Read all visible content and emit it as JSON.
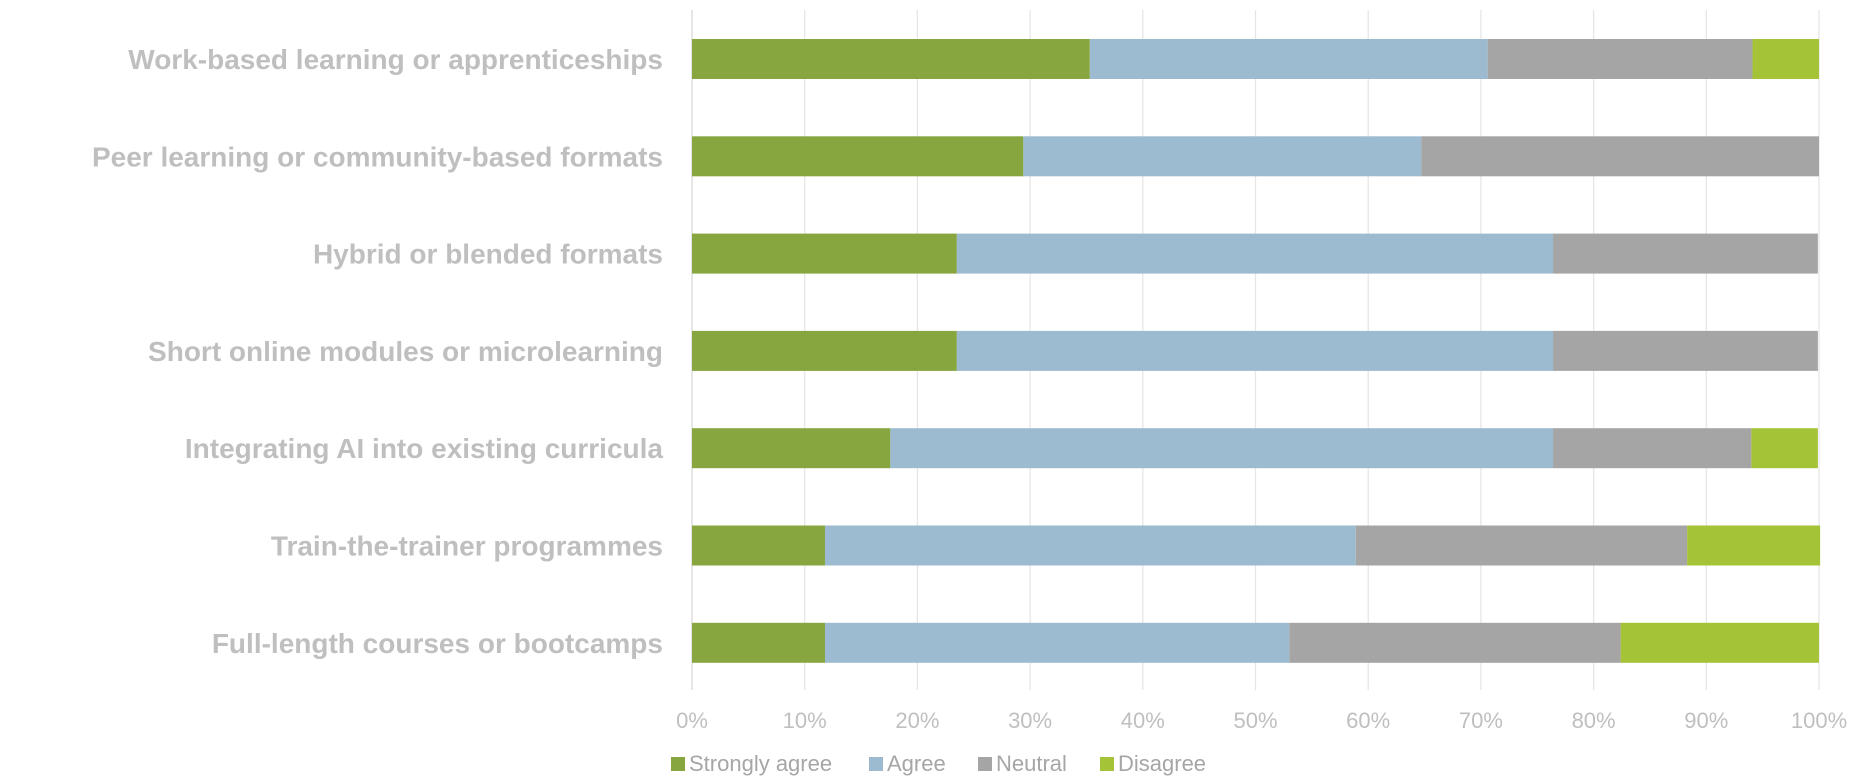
{
  "chart_data": {
    "type": "bar",
    "orientation": "horizontal",
    "stacked": "percent",
    "categories": [
      "Work-based learning or apprenticeships",
      "Peer learning or community-based formats",
      "Hybrid or blended formats",
      "Short online modules or microlearning",
      "Integrating AI into existing curricula",
      "Train-the-trainer programmes",
      "Full-length courses or bootcamps"
    ],
    "series": [
      {
        "name": "Strongly agree",
        "color": "#87a640",
        "values": [
          35.3,
          29.4,
          23.5,
          23.5,
          17.6,
          11.8,
          11.8
        ]
      },
      {
        "name": "Agree",
        "color": "#9dbbd0",
        "values": [
          35.3,
          35.3,
          52.9,
          52.9,
          58.8,
          47.1,
          41.2
        ]
      },
      {
        "name": "Neutral",
        "color": "#a5a5a5",
        "values": [
          23.5,
          35.3,
          23.5,
          23.5,
          17.6,
          29.4,
          29.4
        ]
      },
      {
        "name": "Disagree",
        "color": "#a5c336",
        "values": [
          5.9,
          0,
          0,
          0,
          5.9,
          11.8,
          17.6
        ]
      }
    ],
    "xlim": [
      0,
      100
    ],
    "xticks": [
      "0%",
      "10%",
      "20%",
      "30%",
      "40%",
      "50%",
      "60%",
      "70%",
      "80%",
      "90%",
      "100%"
    ],
    "grid": true,
    "legend_position": "bottom"
  }
}
